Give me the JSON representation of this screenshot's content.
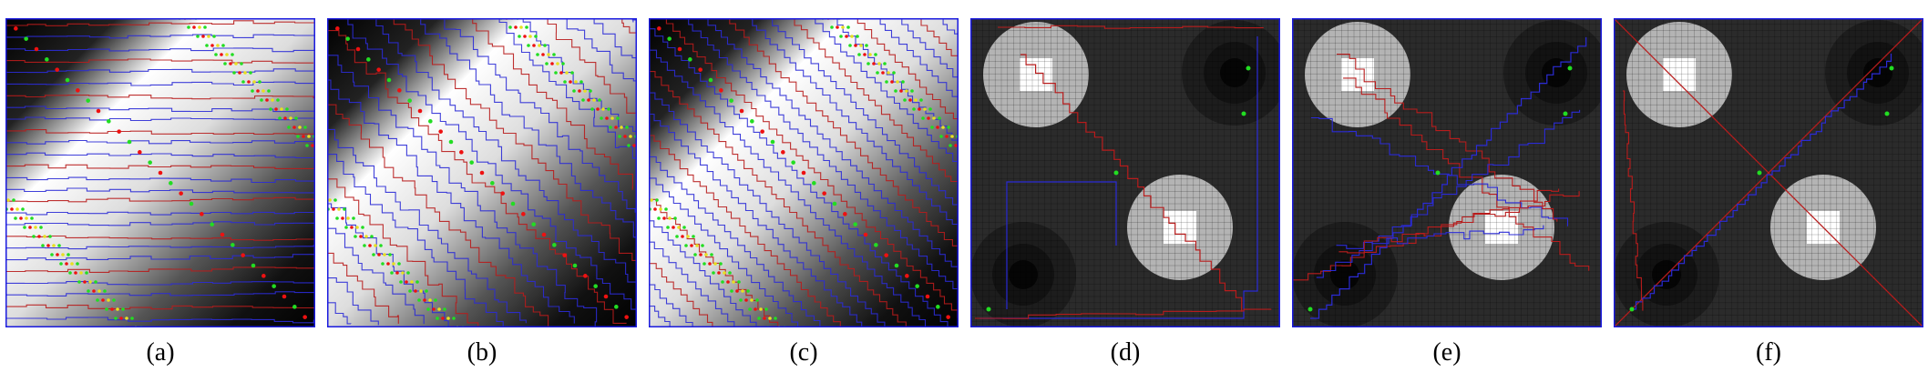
{
  "figure": {
    "panels": [
      {
        "label": "(a)",
        "kind": "diagonal-ridge",
        "style": "horizontal"
      },
      {
        "label": "(b)",
        "kind": "diagonal-ridge",
        "style": "wavy"
      },
      {
        "label": "(c)",
        "kind": "diagonal-ridge",
        "style": "diagonal"
      },
      {
        "label": "(d)",
        "kind": "blob-grid",
        "style": "sparse"
      },
      {
        "label": "(e)",
        "kind": "blob-grid",
        "style": "dense"
      },
      {
        "label": "(f)",
        "kind": "blob-grid",
        "style": "straight"
      }
    ],
    "colors": {
      "border": "#1a1adf",
      "blue_line": "#2b2bd6",
      "red_line": "#b81c1c",
      "green_node": "#22dd22",
      "red_node": "#ee1111",
      "yellow_node": "#e8e020",
      "dark_bg": "#2b2b2b",
      "light_blob": "#b4b4b4",
      "white_core": "#ffffff",
      "dark_blob": "#141414"
    }
  }
}
